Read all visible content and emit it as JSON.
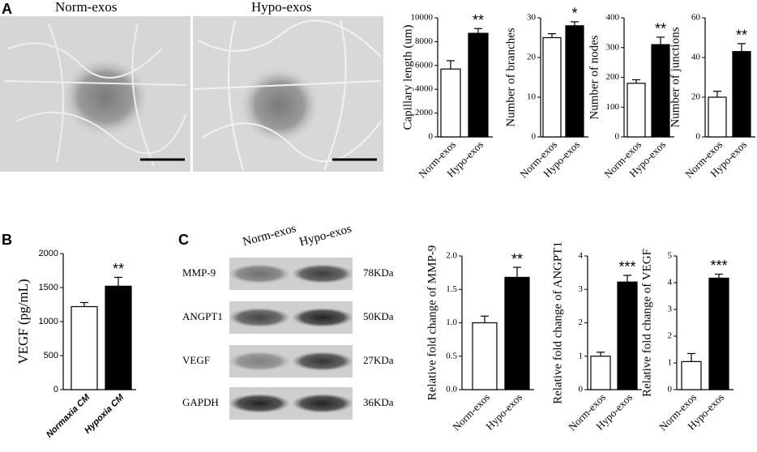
{
  "panel_labels": [
    "A",
    "B",
    "C"
  ],
  "images": {
    "labels": [
      "Norm-exos",
      "Hypo-exos"
    ]
  },
  "blot": {
    "columns": [
      "Norm-exos",
      "Hypo-exos"
    ],
    "rows": [
      {
        "name": "MMP-9",
        "size": "78KDa"
      },
      {
        "name": "ANGPT1",
        "size": "50KDa"
      },
      {
        "name": "VEGF",
        "size": "27KDa"
      },
      {
        "name": "GAPDH",
        "size": "36KDa"
      }
    ]
  },
  "chart_data": [
    {
      "type": "bar",
      "y_label": "Capillary length (um)",
      "categories": [
        "Norm-exos",
        "Hypo-exos"
      ],
      "values": [
        5700,
        8700
      ],
      "errors": [
        700,
        400
      ],
      "colors": [
        "#ffffff",
        "#000000"
      ],
      "ylim": [
        0,
        10000
      ],
      "yticks": [
        0,
        2000,
        4000,
        6000,
        8000,
        10000
      ],
      "significance": "**"
    },
    {
      "type": "bar",
      "y_label": "Number of branches",
      "categories": [
        "Norm-exos",
        "Hypo-exos"
      ],
      "values": [
        25,
        28
      ],
      "errors": [
        1,
        1
      ],
      "colors": [
        "#ffffff",
        "#000000"
      ],
      "ylim": [
        0,
        30
      ],
      "yticks": [
        0,
        10,
        20,
        30
      ],
      "significance": "*"
    },
    {
      "type": "bar",
      "y_label": "Number of nodes",
      "categories": [
        "Norm-exos",
        "Hypo-exos"
      ],
      "values": [
        180,
        310
      ],
      "errors": [
        12,
        25
      ],
      "colors": [
        "#ffffff",
        "#000000"
      ],
      "ylim": [
        0,
        400
      ],
      "yticks": [
        0,
        100,
        200,
        300,
        400
      ],
      "significance": "**"
    },
    {
      "type": "bar",
      "y_label": "Number of junctions",
      "categories": [
        "Norm-exos",
        "Hypo-exos"
      ],
      "values": [
        20,
        43
      ],
      "errors": [
        3,
        4
      ],
      "colors": [
        "#ffffff",
        "#000000"
      ],
      "ylim": [
        0,
        60
      ],
      "yticks": [
        0,
        20,
        40,
        60
      ],
      "significance": "**"
    },
    {
      "type": "bar",
      "y_label": "VEGF (pg/mL)",
      "categories": [
        "Normaxia CM",
        "Hypoxia CM"
      ],
      "values": [
        1220,
        1520
      ],
      "errors": [
        60,
        130
      ],
      "colors": [
        "#ffffff",
        "#000000"
      ],
      "ylim": [
        0,
        2000
      ],
      "yticks": [
        0,
        500,
        1000,
        1500,
        2000
      ],
      "significance": "**"
    },
    {
      "type": "bar",
      "y_label": "Relative fold change of MMP-9",
      "categories": [
        "Norm-exos",
        "Hypo-exos"
      ],
      "values": [
        1.0,
        1.68
      ],
      "errors": [
        0.1,
        0.15
      ],
      "colors": [
        "#ffffff",
        "#000000"
      ],
      "ylim": [
        0,
        2
      ],
      "yticks": [
        {
          "value": 0,
          "label": "0.0"
        },
        0.5,
        {
          "value": 1,
          "label": "1.0"
        },
        1.5,
        {
          "value": 2,
          "label": "2.0"
        }
      ],
      "significance": "**"
    },
    {
      "type": "bar",
      "y_label": "Relative fold change of ANGPT1",
      "categories": [
        "Norm-exos",
        "Hypo-exos"
      ],
      "values": [
        1.0,
        3.22
      ],
      "errors": [
        0.12,
        0.2
      ],
      "colors": [
        "#ffffff",
        "#000000"
      ],
      "ylim": [
        0,
        4
      ],
      "yticks": [
        0,
        1,
        2,
        3,
        4
      ],
      "significance": "***"
    },
    {
      "type": "bar",
      "y_label": "Relative fold change of VEGF",
      "categories": [
        "Norm-exos",
        "Hypo-exos"
      ],
      "values": [
        1.05,
        4.17
      ],
      "errors": [
        0.3,
        0.15
      ],
      "colors": [
        "#ffffff",
        "#000000"
      ],
      "ylim": [
        0,
        5
      ],
      "yticks": [
        0,
        1,
        2,
        3,
        4,
        5
      ],
      "significance": "***"
    }
  ]
}
